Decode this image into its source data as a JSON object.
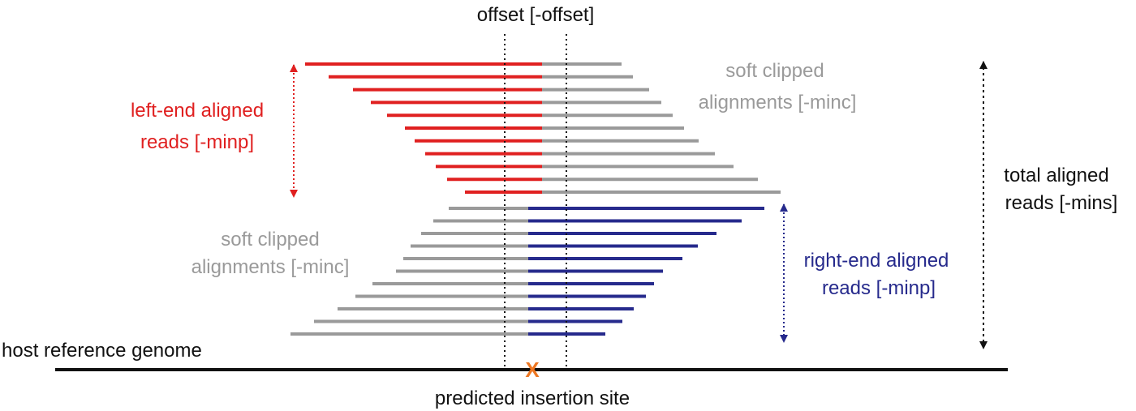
{
  "labels": {
    "offset": "offset [-offset]",
    "soft_clipped_top": [
      "soft clipped",
      "alignments [-minc]"
    ],
    "left_end": [
      "left-end aligned",
      "reads [-minp]"
    ],
    "soft_clipped_bottom": [
      "soft clipped",
      "alignments [-minc]"
    ],
    "right_end": [
      "right-end aligned",
      "reads [-minp]"
    ],
    "total": [
      "total aligned",
      "reads [-mins]"
    ],
    "host_reference": "host reference genome",
    "predicted_site": "predicted insertion site",
    "insertion_marker": "X"
  },
  "colors": {
    "left_reads": "#e02020",
    "right_reads": "#262a8c",
    "clipped": "#9a9a9a",
    "black": "#111111",
    "marker": "#ee7722"
  },
  "icons": {
    "left_range": "double-arrow-icon",
    "right_range": "double-arrow-icon",
    "total_range": "double-arrow-icon",
    "insertion": "x-mark-icon"
  }
}
